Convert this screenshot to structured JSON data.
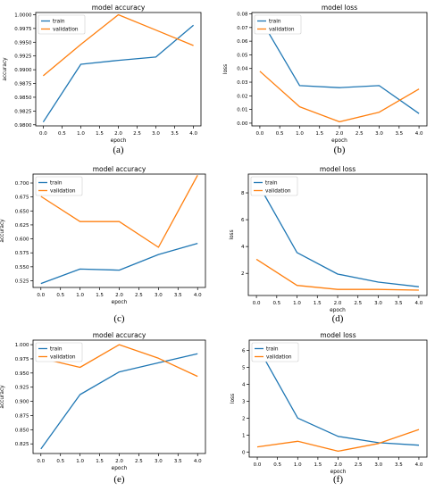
{
  "colors": {
    "train": "#1f77b4",
    "validation": "#ff7f0e"
  },
  "chart_data": [
    {
      "type": "line",
      "label": "(a)",
      "title": "model accuracy",
      "xlabel": "epoch",
      "ylabel": "accuracy",
      "x": [
        0,
        1,
        2,
        3,
        4
      ],
      "xticks": [
        "0.0",
        "0.5",
        "1.0",
        "1.5",
        "2.0",
        "2.5",
        "3.0",
        "3.5",
        "4.0"
      ],
      "yticks": [
        "0.9800",
        "0.9825",
        "0.9850",
        "0.9875",
        "0.9900",
        "0.9925",
        "0.9950",
        "0.9975",
        "1.0000"
      ],
      "xlim": [
        -0.2,
        4.2
      ],
      "ylim": [
        0.9798,
        1.0004
      ],
      "legend": "upper-left",
      "series": [
        {
          "name": "train",
          "values": [
            0.9805,
            0.991,
            0.9917,
            0.9923,
            0.9981
          ]
        },
        {
          "name": "validation",
          "values": [
            0.9889,
            0.9946,
            1.0,
            0.9972,
            0.9944
          ]
        }
      ]
    },
    {
      "type": "line",
      "label": "(b)",
      "title": "model loss",
      "xlabel": "epoch",
      "ylabel": "loss",
      "x": [
        0,
        1,
        2,
        3,
        4
      ],
      "xticks": [
        "0.0",
        "0.5",
        "1.0",
        "1.5",
        "2.0",
        "2.5",
        "3.0",
        "3.5",
        "4.0"
      ],
      "yticks": [
        "0.00",
        "0.01",
        "0.02",
        "0.03",
        "0.04",
        "0.05",
        "0.06",
        "0.07",
        "0.08"
      ],
      "xlim": [
        -0.2,
        4.2
      ],
      "ylim": [
        -0.002,
        0.081
      ],
      "legend": "upper-left",
      "series": [
        {
          "name": "train",
          "values": [
            0.077,
            0.0275,
            0.026,
            0.0275,
            0.007
          ]
        },
        {
          "name": "validation",
          "values": [
            0.038,
            0.012,
            0.001,
            0.008,
            0.025
          ]
        }
      ]
    },
    {
      "type": "line",
      "label": "(c)",
      "title": "model accuracy",
      "xlabel": "epoch",
      "ylabel": "accuracy",
      "x": [
        0,
        1,
        2,
        3,
        4
      ],
      "xticks": [
        "0.0",
        "0.5",
        "1.0",
        "1.5",
        "2.0",
        "2.5",
        "3.0",
        "3.5",
        "4.0"
      ],
      "yticks": [
        "0.525",
        "0.550",
        "0.575",
        "0.600",
        "0.625",
        "0.650",
        "0.675",
        "0.700"
      ],
      "xlim": [
        -0.2,
        4.2
      ],
      "ylim": [
        0.513,
        0.716
      ],
      "legend": "upper-left",
      "series": [
        {
          "name": "train",
          "values": [
            0.52,
            0.546,
            0.544,
            0.572,
            0.592
          ]
        },
        {
          "name": "validation",
          "values": [
            0.676,
            0.631,
            0.631,
            0.585,
            0.714
          ]
        }
      ]
    },
    {
      "type": "line",
      "label": "(d)",
      "title": "model loss",
      "xlabel": "epoch",
      "ylabel": "loss",
      "x": [
        0,
        1,
        2,
        3,
        4
      ],
      "xticks": [
        "0.0",
        "0.5",
        "1.0",
        "1.5",
        "2.0",
        "2.5",
        "3.0",
        "3.5",
        "4.0"
      ],
      "yticks": [
        "2",
        "4",
        "6",
        "8"
      ],
      "xlim": [
        -0.2,
        4.2
      ],
      "ylim": [
        0.35,
        9.4
      ],
      "legend": "upper-left",
      "series": [
        {
          "name": "train",
          "values": [
            8.9,
            3.55,
            1.95,
            1.35,
            1.0
          ]
        },
        {
          "name": "validation",
          "values": [
            3.05,
            1.1,
            0.8,
            0.8,
            0.75
          ]
        }
      ]
    },
    {
      "type": "line",
      "label": "(e)",
      "title": "model accuracy",
      "xlabel": "epoch",
      "ylabel": "accuracy",
      "x": [
        0,
        1,
        2,
        3,
        4
      ],
      "xticks": [
        "0.0",
        "0.5",
        "1.0",
        "1.5",
        "2.0",
        "2.5",
        "3.0",
        "3.5",
        "4.0"
      ],
      "yticks": [
        "0.825",
        "0.850",
        "0.875",
        "0.900",
        "0.925",
        "0.950",
        "0.975",
        "1.000"
      ],
      "xlim": [
        -0.2,
        4.2
      ],
      "ylim": [
        0.808,
        1.008
      ],
      "legend": "upper-left",
      "series": [
        {
          "name": "train",
          "values": [
            0.816,
            0.912,
            0.952,
            0.968,
            0.984
          ]
        },
        {
          "name": "validation",
          "values": [
            0.976,
            0.96,
            1.0,
            0.976,
            0.944
          ]
        }
      ]
    },
    {
      "type": "line",
      "label": "(f)",
      "title": "model loss",
      "xlabel": "epoch",
      "ylabel": "loss",
      "x": [
        0,
        1,
        2,
        3,
        4
      ],
      "xticks": [
        "0.0",
        "0.5",
        "1.0",
        "1.5",
        "2.0",
        "2.5",
        "3.0",
        "3.5",
        "4.0"
      ],
      "yticks": [
        "0",
        "1",
        "2",
        "3",
        "4",
        "5",
        "6"
      ],
      "xlim": [
        -0.2,
        4.2
      ],
      "ylim": [
        -0.3,
        6.6
      ],
      "legend": "upper-left",
      "series": [
        {
          "name": "train",
          "values": [
            6.25,
            2.0,
            0.92,
            0.55,
            0.4
          ]
        },
        {
          "name": "validation",
          "values": [
            0.3,
            0.63,
            0.05,
            0.5,
            1.33
          ]
        }
      ]
    }
  ]
}
